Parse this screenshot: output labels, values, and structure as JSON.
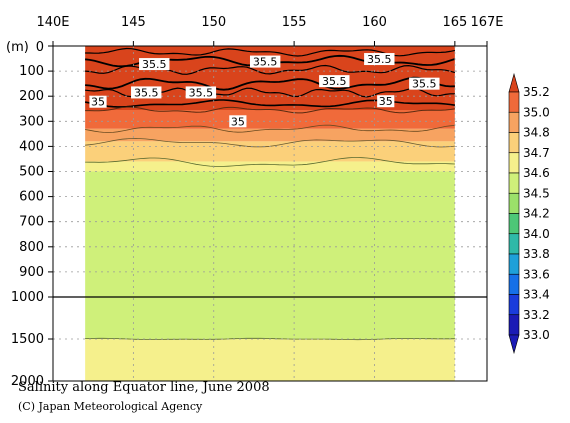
{
  "chart_data": {
    "type": "heatmap",
    "title": "Salinity along Equator line, June 2008",
    "credit": "(C) Japan Meteorological Agency",
    "x_ticks": [
      "140E",
      "145",
      "150",
      "155",
      "160",
      "165",
      "167E"
    ],
    "x_tick_values": [
      140,
      145,
      150,
      155,
      160,
      165,
      167
    ],
    "xlim": [
      140,
      167
    ],
    "data_lon_range": [
      142,
      165
    ],
    "ylabel": "(m)",
    "y_ticks_upper": [
      "0",
      "100",
      "200",
      "300",
      "400",
      "500",
      "600",
      "700",
      "800",
      "900",
      "1000"
    ],
    "y_tick_values_upper": [
      0,
      100,
      200,
      300,
      400,
      500,
      600,
      700,
      800,
      900,
      1000
    ],
    "y_ticks_lower": [
      "1500",
      "2000"
    ],
    "y_tick_values_lower": [
      1500,
      2000
    ],
    "ylim": [
      0,
      2000
    ],
    "colorbar": {
      "levels": [
        "35.2",
        "35.0",
        "34.8",
        "34.7",
        "34.6",
        "34.5",
        "34.2",
        "34.0",
        "33.8",
        "33.6",
        "33.4",
        "33.2",
        "33.0"
      ],
      "colors": [
        "#d9441c",
        "#f06a3a",
        "#f7a361",
        "#fbd07a",
        "#f5f08c",
        "#cff07a",
        "#9be06a",
        "#4dc777",
        "#2fb9a8",
        "#1ea0d9",
        "#1670e8",
        "#1a3cdb",
        "#1b1bb5"
      ]
    },
    "bands": [
      {
        "salinity": "> 35.2",
        "color": "#d9441c",
        "depth_range": [
          0,
          255
        ]
      },
      {
        "salinity": "35.0–35.2",
        "color": "#f06a3a",
        "depth_range": [
          255,
          330
        ]
      },
      {
        "salinity": "34.8–35.0",
        "color": "#f7a361",
        "depth_range": [
          330,
          380
        ]
      },
      {
        "salinity": "34.7–34.8",
        "color": "#fbd07a",
        "depth_range": [
          380,
          460
        ]
      },
      {
        "salinity": "34.6–34.7",
        "color": "#f5f08c",
        "depth_range": [
          460,
          500
        ]
      },
      {
        "salinity": "34.5–34.6",
        "color": "#cff07a",
        "depth_range": [
          500,
          1500
        ]
      },
      {
        "salinity": "34.6–34.7",
        "color": "#f5f08c",
        "depth_range": [
          1500,
          2000
        ]
      }
    ],
    "contour_labels": [
      {
        "text": "35.5",
        "lon": 146.3,
        "depth": 72
      },
      {
        "text": "35.5",
        "lon": 153.2,
        "depth": 62
      },
      {
        "text": "35.5",
        "lon": 160.3,
        "depth": 52
      },
      {
        "text": "35.5",
        "lon": 145.8,
        "depth": 185
      },
      {
        "text": "35.5",
        "lon": 149.2,
        "depth": 185
      },
      {
        "text": "35.5",
        "lon": 157.5,
        "depth": 140
      },
      {
        "text": "35.5",
        "lon": 163.1,
        "depth": 150
      },
      {
        "text": "35",
        "lon": 142.8,
        "depth": 222
      },
      {
        "text": "35",
        "lon": 151.5,
        "depth": 300
      },
      {
        "text": "35",
        "lon": 160.7,
        "depth": 220
      }
    ],
    "reference_line_depth": 1000,
    "grid": true
  }
}
